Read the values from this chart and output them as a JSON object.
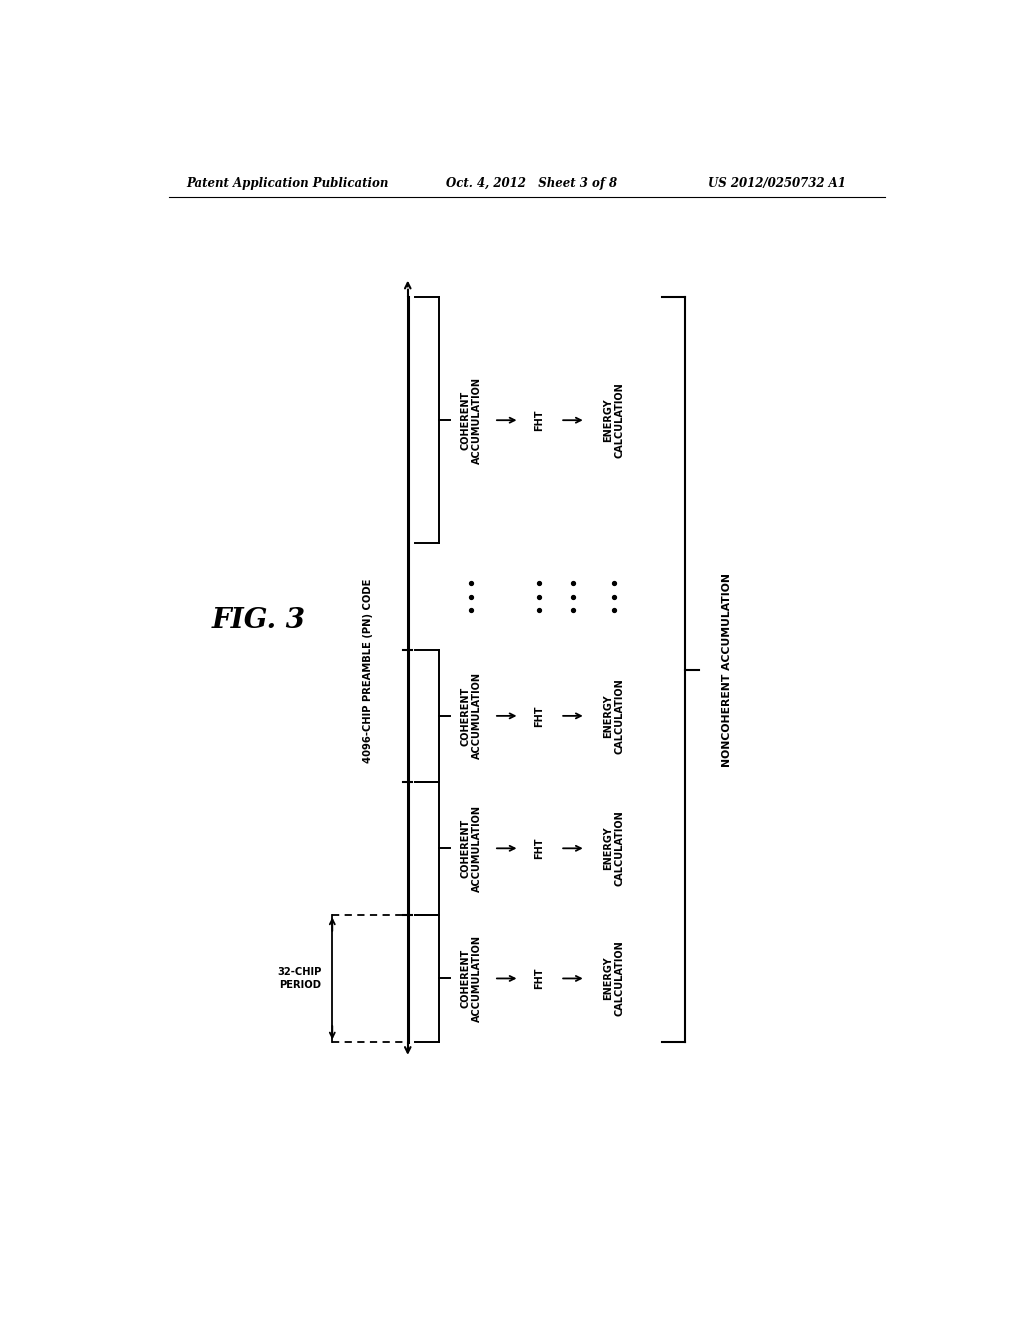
{
  "title_left": "Patent Application Publication",
  "title_mid": "Oct. 4, 2012   Sheet 3 of 8",
  "title_right": "US 2012/0250732 A1",
  "fig_label": "FIG. 3",
  "vertical_label": "4096-CHIP PREAMBLE (PN) CODE",
  "period_label": "32-CHIP\nPERIOD",
  "noncoherent_label": "NONCOHERENT ACCUMULATION",
  "rows": [
    {
      "coherent": "COHERENT\nACCUMULATION",
      "fht": "FHT",
      "energy": "ENERGY\nCALCULATION"
    },
    {
      "coherent": "COHERENT\nACCUMULATION",
      "fht": "FHT",
      "energy": "ENERGY\nCALCULATION"
    },
    {
      "coherent": "COHERENT\nACCUMULATION",
      "fht": "FHT",
      "energy": "ENERGY\nCALCULATION"
    },
    {
      "coherent": "COHERENT\nACCUMULATION",
      "fht": "FHT",
      "energy": "ENERGY\nCALCULATION"
    }
  ],
  "bg_color": "#ffffff",
  "line_color": "#000000"
}
